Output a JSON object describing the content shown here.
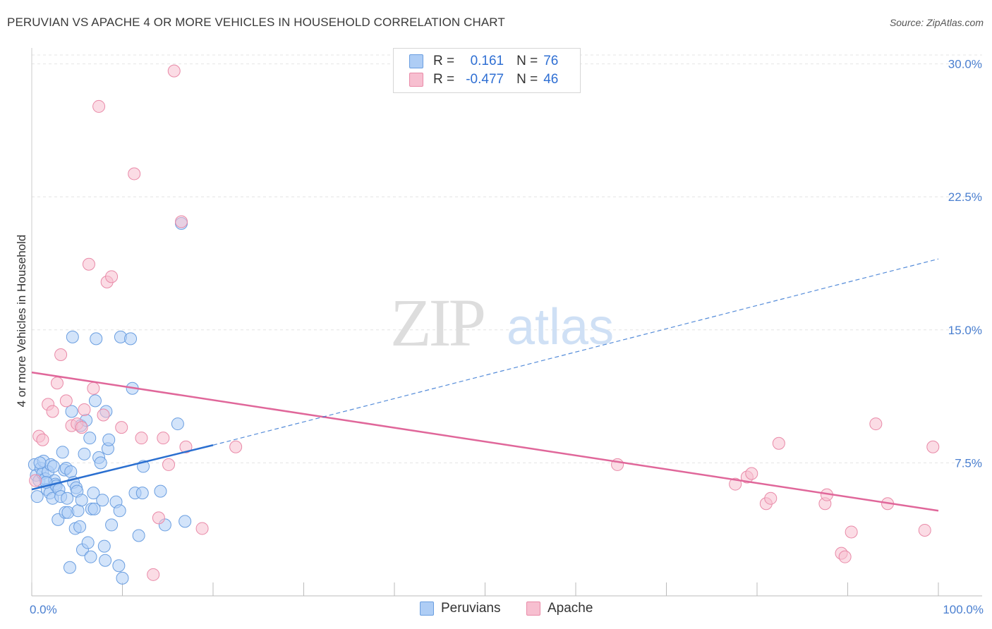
{
  "title": "PERUVIAN VS APACHE 4 OR MORE VEHICLES IN HOUSEHOLD CORRELATION CHART",
  "source": "Source: ZipAtlas.com",
  "watermark": {
    "zip": "ZIP",
    "atlas": "atlas"
  },
  "legend": {
    "rows": [
      {
        "r_label": "R =",
        "r_value": "0.161",
        "n_label": "N =",
        "n_value": "76"
      },
      {
        "r_label": "R =",
        "r_value": "-0.477",
        "n_label": "N =",
        "n_value": "46"
      }
    ]
  },
  "bottom_legend": {
    "peruvians": "Peruvians",
    "apache": "Apache"
  },
  "colors": {
    "peruvians_fill": "#aecdf5",
    "peruvians_stroke": "#6a9ee0",
    "peruvians_line": "#2a6fd0",
    "apache_fill": "#f7bfd0",
    "apache_stroke": "#e98aa8",
    "apache_line": "#e0679a",
    "tick_text": "#4a7fd0",
    "grid": "#e4e4e4"
  },
  "chart_data": {
    "type": "scatter",
    "title": "PERUVIAN VS APACHE 4 OR MORE VEHICLES IN HOUSEHOLD CORRELATION CHART",
    "xlabel": "",
    "ylabel": "4 or more Vehicles in Household",
    "xlim": [
      0,
      100
    ],
    "ylim": [
      0,
      30.5
    ],
    "x_tick_labels": [
      "0.0%",
      "100.0%"
    ],
    "y_ticks": [
      7.5,
      15.0,
      22.5,
      30.0
    ],
    "y_tick_labels": [
      "7.5%",
      "15.0%",
      "22.5%",
      "30.0%"
    ],
    "grid": true,
    "series": [
      {
        "name": "Peruvians",
        "r": 0.161,
        "n": 76,
        "trend": {
          "x0": 0,
          "y0": 6.0,
          "x1": 20,
          "y1": 8.5,
          "dash_x1": 100,
          "dash_y1": 19.0
        },
        "points": [
          [
            0.3,
            7.4
          ],
          [
            0.5,
            6.8
          ],
          [
            0.6,
            5.6
          ],
          [
            0.8,
            6.5
          ],
          [
            1.0,
            7.2
          ],
          [
            1.2,
            6.9
          ],
          [
            1.3,
            7.6
          ],
          [
            1.5,
            6.6
          ],
          [
            1.7,
            6.0
          ],
          [
            1.8,
            7.0
          ],
          [
            2.0,
            5.8
          ],
          [
            2.1,
            7.4
          ],
          [
            2.3,
            5.5
          ],
          [
            2.5,
            6.5
          ],
          [
            2.6,
            6.3
          ],
          [
            2.7,
            6.2
          ],
          [
            2.9,
            4.3
          ],
          [
            3.0,
            6.0
          ],
          [
            3.2,
            5.6
          ],
          [
            3.4,
            8.1
          ],
          [
            3.6,
            7.1
          ],
          [
            3.7,
            4.7
          ],
          [
            3.8,
            7.2
          ],
          [
            4.0,
            4.7
          ],
          [
            4.2,
            1.6
          ],
          [
            4.3,
            7.0
          ],
          [
            4.4,
            10.4
          ],
          [
            4.5,
            14.6
          ],
          [
            4.6,
            6.4
          ],
          [
            4.8,
            3.8
          ],
          [
            4.9,
            6.1
          ],
          [
            5.0,
            5.9
          ],
          [
            5.1,
            4.8
          ],
          [
            5.3,
            3.9
          ],
          [
            5.4,
            9.6
          ],
          [
            5.5,
            5.4
          ],
          [
            5.6,
            2.6
          ],
          [
            5.8,
            8.0
          ],
          [
            6.0,
            9.9
          ],
          [
            6.2,
            3.0
          ],
          [
            6.4,
            8.9
          ],
          [
            6.5,
            2.2
          ],
          [
            6.6,
            4.9
          ],
          [
            6.8,
            5.8
          ],
          [
            6.9,
            4.9
          ],
          [
            7.0,
            11.0
          ],
          [
            7.1,
            14.5
          ],
          [
            7.4,
            7.8
          ],
          [
            7.6,
            7.5
          ],
          [
            7.8,
            5.4
          ],
          [
            8.0,
            2.8
          ],
          [
            8.1,
            2.0
          ],
          [
            8.2,
            10.4
          ],
          [
            8.4,
            8.3
          ],
          [
            8.5,
            8.8
          ],
          [
            8.8,
            4.0
          ],
          [
            9.3,
            5.3
          ],
          [
            9.6,
            1.7
          ],
          [
            9.7,
            4.8
          ],
          [
            9.8,
            14.6
          ],
          [
            10.0,
            1.0
          ],
          [
            10.9,
            14.5
          ],
          [
            11.1,
            11.7
          ],
          [
            11.4,
            5.8
          ],
          [
            11.8,
            3.4
          ],
          [
            12.2,
            5.8
          ],
          [
            12.3,
            7.3
          ],
          [
            14.2,
            5.9
          ],
          [
            14.7,
            4.0
          ],
          [
            16.1,
            9.7
          ],
          [
            16.5,
            21.0
          ],
          [
            16.9,
            4.2
          ],
          [
            0.9,
            7.5
          ],
          [
            1.6,
            6.4
          ],
          [
            3.9,
            5.5
          ],
          [
            2.4,
            7.3
          ]
        ]
      },
      {
        "name": "Apache",
        "r": -0.477,
        "n": 46,
        "trend": {
          "x0": 0,
          "y0": 12.6,
          "x1": 100,
          "y1": 4.8
        },
        "points": [
          [
            0.4,
            6.5
          ],
          [
            0.8,
            9.0
          ],
          [
            1.2,
            8.8
          ],
          [
            1.8,
            10.8
          ],
          [
            2.3,
            10.4
          ],
          [
            2.8,
            12.0
          ],
          [
            3.2,
            13.6
          ],
          [
            3.8,
            11.0
          ],
          [
            4.4,
            9.6
          ],
          [
            5.0,
            9.7
          ],
          [
            5.5,
            9.5
          ],
          [
            5.8,
            10.5
          ],
          [
            6.3,
            18.7
          ],
          [
            6.8,
            11.7
          ],
          [
            7.4,
            27.6
          ],
          [
            7.9,
            10.2
          ],
          [
            8.3,
            17.7
          ],
          [
            8.8,
            18.0
          ],
          [
            9.9,
            9.5
          ],
          [
            11.3,
            23.8
          ],
          [
            12.1,
            8.9
          ],
          [
            14.0,
            4.4
          ],
          [
            14.5,
            8.9
          ],
          [
            15.1,
            7.4
          ],
          [
            15.7,
            29.6
          ],
          [
            16.5,
            21.1
          ],
          [
            17.0,
            8.4
          ],
          [
            18.8,
            3.8
          ],
          [
            22.5,
            8.4
          ],
          [
            13.4,
            1.2
          ],
          [
            64.6,
            7.4
          ],
          [
            77.6,
            6.3
          ],
          [
            78.9,
            6.7
          ],
          [
            79.4,
            6.9
          ],
          [
            81.0,
            5.2
          ],
          [
            81.5,
            5.5
          ],
          [
            82.4,
            8.6
          ],
          [
            87.5,
            5.2
          ],
          [
            87.7,
            5.7
          ],
          [
            89.3,
            2.4
          ],
          [
            89.7,
            2.2
          ],
          [
            90.4,
            3.6
          ],
          [
            93.1,
            9.7
          ],
          [
            94.4,
            5.2
          ],
          [
            98.5,
            3.7
          ],
          [
            99.4,
            8.4
          ]
        ]
      }
    ]
  }
}
